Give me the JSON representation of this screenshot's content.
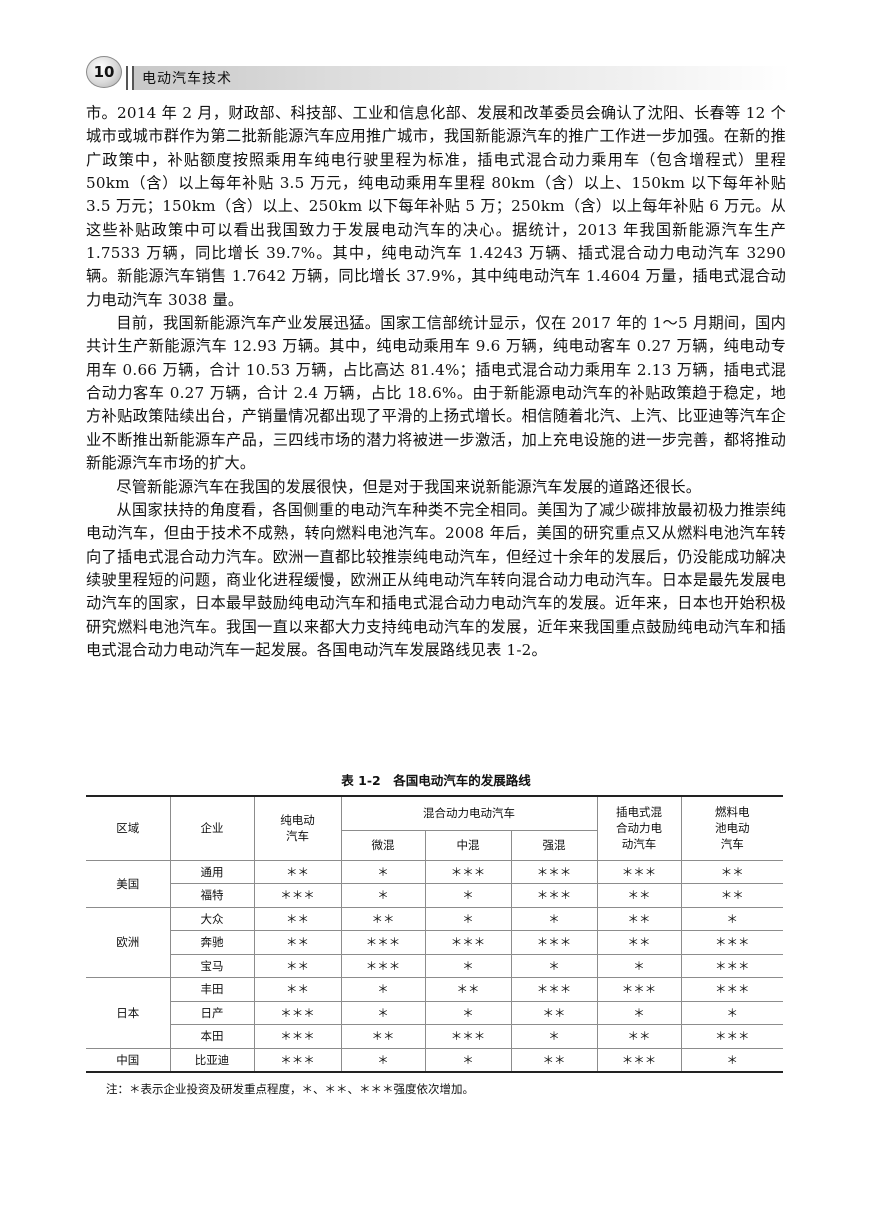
{
  "header": {
    "page_number": "10",
    "book_title": "电动汽车技术"
  },
  "paragraphs": [
    {
      "indent": false,
      "text": "市。2014 年 2 月，财政部、科技部、工业和信息化部、发展和改革委员会确认了沈阳、长春等 12 个城市或城市群作为第二批新能源汽车应用推广城市，我国新能源汽车的推广工作进一步加强。在新的推广政策中，补贴额度按照乘用车纯电行驶里程为标准，插电式混合动力乘用车（包含增程式）里程 50km（含）以上每年补贴 3.5 万元，纯电动乘用车里程 80km（含）以上、150km 以下每年补贴 3.5 万元；150km（含）以上、250km 以下每年补贴 5 万；250km（含）以上每年补贴 6 万元。从这些补贴政策中可以看出我国致力于发展电动汽车的决心。据统计，2013 年我国新能源汽车生产 1.7533 万辆，同比增长 39.7%。其中，纯电动汽车 1.4243 万辆、插式混合动力电动汽车 3290 辆。新能源汽车销售 1.7642 万辆，同比增长 37.9%，其中纯电动汽车 1.4604 万量，插电式混合动力电动汽车 3038 量。"
    },
    {
      "indent": true,
      "text": "目前，我国新能源汽车产业发展迅猛。国家工信部统计显示，仅在 2017 年的 1～5 月期间，国内共计生产新能源汽车 12.93 万辆。其中，纯电动乘用车 9.6 万辆，纯电动客车 0.27 万辆，纯电动专用车 0.66 万辆，合计 10.53 万辆，占比高达 81.4%；插电式混合动力乘用车 2.13 万辆，插电式混合动力客车 0.27 万辆，合计 2.4 万辆，占比 18.6%。由于新能源电动汽车的补贴政策趋于稳定，地方补贴政策陆续出台，产销量情况都出现了平滑的上扬式增长。相信随着北汽、上汽、比亚迪等汽车企业不断推出新能源车产品，三四线市场的潜力将被进一步激活，加上充电设施的进一步完善，都将推动新能源汽车市场的扩大。"
    },
    {
      "indent": true,
      "text": "尽管新能源汽车在我国的发展很快，但是对于我国来说新能源汽车发展的道路还很长。"
    },
    {
      "indent": true,
      "text": "从国家扶持的角度看，各国侧重的电动汽车种类不完全相同。美国为了减少碳排放最初极力推崇纯电动汽车，但由于技术不成熟，转向燃料电池汽车。2008 年后，美国的研究重点又从燃料电池汽车转向了插电式混合动力汽车。欧洲一直都比较推崇纯电动汽车，但经过十余年的发展后，仍没能成功解决续驶里程短的问题，商业化进程缓慢，欧洲正从纯电动汽车转向混合动力电动汽车。日本是最先发展电动汽车的国家，日本最早鼓励纯电动汽车和插电式混合动力电动汽车的发展。近年来，日本也开始积极研究燃料电池汽车。我国一直以来都大力支持纯电动汽车的发展，近年来我国重点鼓励纯电动汽车和插电式混合动力电动汽车一起发展。各国电动汽车发展路线见表 1-2。"
    }
  ],
  "table": {
    "caption": "表 1-2　各国电动汽车的发展路线",
    "headers": {
      "region": "区域",
      "company": "企业",
      "pure_ev": "纯电动汽车",
      "hybrid_group": "混合动力电动汽车",
      "mild": "微混",
      "medium": "中混",
      "strong": "强混",
      "phev": "插电式混合动力电动汽车",
      "fcev": "燃料电池电动汽车"
    },
    "rows": [
      {
        "region": "美国",
        "span": 2,
        "company": "通用",
        "vals": [
          "＊＊",
          "＊",
          "＊＊＊",
          "＊＊＊",
          "＊＊＊",
          "＊＊"
        ]
      },
      {
        "company": "福特",
        "vals": [
          "＊＊＊",
          "＊",
          "＊",
          "＊＊＊",
          "＊＊",
          "＊＊"
        ]
      },
      {
        "region": "欧洲",
        "span": 3,
        "company": "大众",
        "vals": [
          "＊＊",
          "＊＊",
          "＊",
          "＊",
          "＊＊",
          "＊"
        ]
      },
      {
        "company": "奔驰",
        "vals": [
          "＊＊",
          "＊＊＊",
          "＊＊＊",
          "＊＊＊",
          "＊＊",
          "＊＊＊"
        ]
      },
      {
        "company": "宝马",
        "vals": [
          "＊＊",
          "＊＊＊",
          "＊",
          "＊",
          "＊",
          "＊＊＊"
        ]
      },
      {
        "region": "日本",
        "span": 3,
        "company": "丰田",
        "vals": [
          "＊＊",
          "＊",
          "＊＊",
          "＊＊＊",
          "＊＊＊",
          "＊＊＊"
        ]
      },
      {
        "company": "日产",
        "vals": [
          "＊＊＊",
          "＊",
          "＊",
          "＊＊",
          "＊",
          "＊"
        ]
      },
      {
        "company": "本田",
        "vals": [
          "＊＊＊",
          "＊＊",
          "＊＊＊",
          "＊",
          "＊＊",
          "＊＊＊"
        ]
      },
      {
        "region": "中国",
        "span": 1,
        "company": "比亚迪",
        "vals": [
          "＊＊＊",
          "＊",
          "＊",
          "＊＊",
          "＊＊＊",
          "＊"
        ]
      }
    ],
    "note": "注：＊表示企业投资及研发重点程度，＊、＊＊、＊＊＊强度依次增加。"
  }
}
